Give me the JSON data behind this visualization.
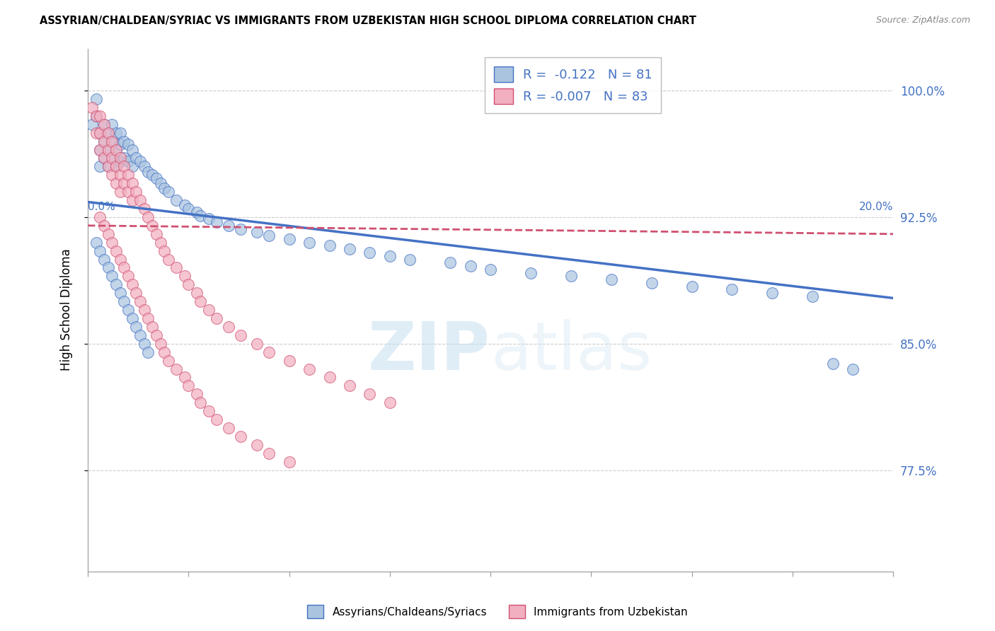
{
  "title": "ASSYRIAN/CHALDEAN/SYRIAC VS IMMIGRANTS FROM UZBEKISTAN HIGH SCHOOL DIPLOMA CORRELATION CHART",
  "source": "Source: ZipAtlas.com",
  "ylabel": "High School Diploma",
  "ytick_labels": [
    "77.5%",
    "85.0%",
    "92.5%",
    "100.0%"
  ],
  "ytick_values": [
    0.775,
    0.85,
    0.925,
    1.0
  ],
  "xlim": [
    0.0,
    0.2
  ],
  "ylim": [
    0.715,
    1.025
  ],
  "legend_blue_R": "-0.122",
  "legend_blue_N": "81",
  "legend_pink_R": "-0.007",
  "legend_pink_N": "83",
  "blue_color": "#aac4e0",
  "pink_color": "#f2afc0",
  "trendline_blue_color": "#4472C4",
  "trendline_pink_color": "#d05070",
  "watermark_zip": "ZIP",
  "watermark_atlas": "atlas",
  "blue_scatter_x": [
    0.001,
    0.002,
    0.002,
    0.003,
    0.003,
    0.003,
    0.004,
    0.004,
    0.004,
    0.005,
    0.005,
    0.005,
    0.006,
    0.006,
    0.006,
    0.007,
    0.007,
    0.007,
    0.008,
    0.008,
    0.008,
    0.009,
    0.009,
    0.01,
    0.01,
    0.011,
    0.011,
    0.012,
    0.013,
    0.014,
    0.015,
    0.016,
    0.017,
    0.018,
    0.019,
    0.02,
    0.022,
    0.024,
    0.025,
    0.027,
    0.028,
    0.03,
    0.032,
    0.035,
    0.038,
    0.042,
    0.045,
    0.05,
    0.055,
    0.06,
    0.065,
    0.07,
    0.075,
    0.08,
    0.09,
    0.095,
    0.1,
    0.11,
    0.12,
    0.13,
    0.14,
    0.15,
    0.16,
    0.17,
    0.18,
    0.002,
    0.003,
    0.004,
    0.005,
    0.006,
    0.007,
    0.008,
    0.009,
    0.01,
    0.011,
    0.012,
    0.013,
    0.014,
    0.015,
    0.185,
    0.19
  ],
  "blue_scatter_y": [
    0.98,
    0.995,
    0.985,
    0.975,
    0.965,
    0.955,
    0.98,
    0.97,
    0.96,
    0.975,
    0.965,
    0.955,
    0.98,
    0.97,
    0.96,
    0.975,
    0.965,
    0.955,
    0.975,
    0.968,
    0.958,
    0.97,
    0.96,
    0.968,
    0.958,
    0.965,
    0.955,
    0.96,
    0.958,
    0.955,
    0.952,
    0.95,
    0.948,
    0.945,
    0.942,
    0.94,
    0.935,
    0.932,
    0.93,
    0.928,
    0.926,
    0.924,
    0.922,
    0.92,
    0.918,
    0.916,
    0.914,
    0.912,
    0.91,
    0.908,
    0.906,
    0.904,
    0.902,
    0.9,
    0.898,
    0.896,
    0.894,
    0.892,
    0.89,
    0.888,
    0.886,
    0.884,
    0.882,
    0.88,
    0.878,
    0.91,
    0.905,
    0.9,
    0.895,
    0.89,
    0.885,
    0.88,
    0.875,
    0.87,
    0.865,
    0.86,
    0.855,
    0.85,
    0.845,
    0.838,
    0.835
  ],
  "pink_scatter_x": [
    0.001,
    0.002,
    0.002,
    0.003,
    0.003,
    0.003,
    0.004,
    0.004,
    0.004,
    0.005,
    0.005,
    0.005,
    0.006,
    0.006,
    0.006,
    0.007,
    0.007,
    0.007,
    0.008,
    0.008,
    0.008,
    0.009,
    0.009,
    0.01,
    0.01,
    0.011,
    0.011,
    0.012,
    0.013,
    0.014,
    0.015,
    0.016,
    0.017,
    0.018,
    0.019,
    0.02,
    0.022,
    0.024,
    0.025,
    0.027,
    0.028,
    0.03,
    0.032,
    0.035,
    0.038,
    0.042,
    0.045,
    0.05,
    0.055,
    0.06,
    0.065,
    0.07,
    0.075,
    0.003,
    0.004,
    0.005,
    0.006,
    0.007,
    0.008,
    0.009,
    0.01,
    0.011,
    0.012,
    0.013,
    0.014,
    0.015,
    0.016,
    0.017,
    0.018,
    0.019,
    0.02,
    0.022,
    0.024,
    0.025,
    0.027,
    0.028,
    0.03,
    0.032,
    0.035,
    0.038,
    0.042,
    0.045,
    0.05
  ],
  "pink_scatter_y": [
    0.99,
    0.985,
    0.975,
    0.985,
    0.975,
    0.965,
    0.98,
    0.97,
    0.96,
    0.975,
    0.965,
    0.955,
    0.97,
    0.96,
    0.95,
    0.965,
    0.955,
    0.945,
    0.96,
    0.95,
    0.94,
    0.955,
    0.945,
    0.95,
    0.94,
    0.945,
    0.935,
    0.94,
    0.935,
    0.93,
    0.925,
    0.92,
    0.915,
    0.91,
    0.905,
    0.9,
    0.895,
    0.89,
    0.885,
    0.88,
    0.875,
    0.87,
    0.865,
    0.86,
    0.855,
    0.85,
    0.845,
    0.84,
    0.835,
    0.83,
    0.825,
    0.82,
    0.815,
    0.925,
    0.92,
    0.915,
    0.91,
    0.905,
    0.9,
    0.895,
    0.89,
    0.885,
    0.88,
    0.875,
    0.87,
    0.865,
    0.86,
    0.855,
    0.85,
    0.845,
    0.84,
    0.835,
    0.83,
    0.825,
    0.82,
    0.815,
    0.81,
    0.805,
    0.8,
    0.795,
    0.79,
    0.785,
    0.78
  ],
  "blue_trendline_y0": 0.934,
  "blue_trendline_y1": 0.877,
  "pink_trendline_y0": 0.92,
  "pink_trendline_y1": 0.915
}
